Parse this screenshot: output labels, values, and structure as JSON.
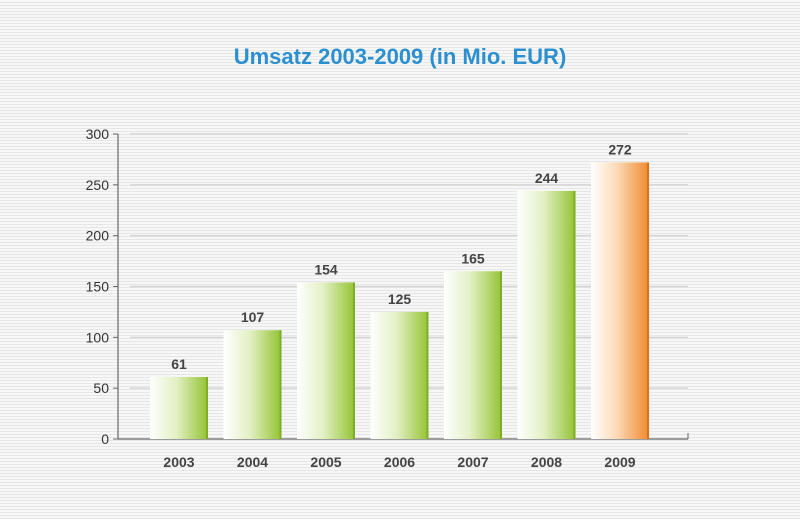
{
  "chart_data": {
    "type": "bar",
    "title": "Umsatz 2003-2009 (in Mio. EUR)",
    "xlabel": "",
    "ylabel": "",
    "categories": [
      "2003",
      "2004",
      "2005",
      "2006",
      "2007",
      "2008",
      "2009"
    ],
    "values": [
      61,
      107,
      154,
      125,
      165,
      244,
      272
    ],
    "value_labels": [
      "61",
      "107",
      "154",
      "125",
      "165",
      "244",
      "272"
    ],
    "ylim": [
      0,
      300
    ],
    "yticks": [
      0,
      50,
      100,
      150,
      200,
      250,
      300
    ],
    "ytick_labels": [
      "0",
      "50",
      "100",
      "150",
      "200",
      "250",
      "300"
    ],
    "grid": true,
    "colors": {
      "default_bar": "#9ccb3b",
      "highlight_bar": "#f39a45",
      "highlight_index": 6,
      "title": "#2b8fd0"
    }
  }
}
